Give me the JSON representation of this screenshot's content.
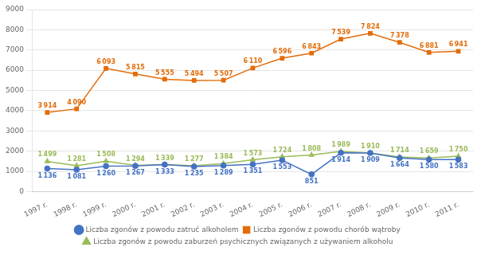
{
  "chart_data": {
    "type": "line",
    "categories": [
      "1997 r.",
      "1998 r.",
      "1999 r.",
      "2000 r.",
      "2001 r.",
      "2002 r.",
      "2003 r.",
      "2004 r.",
      "2005 r.",
      "2006 r.",
      "2007 r.",
      "2008 r.",
      "2009 r.",
      "2010 r.",
      "2011 r."
    ],
    "series": [
      {
        "name": "Liczba zgonów z powodu zatruć alkoholem",
        "color": "#4472C4",
        "marker": "circle",
        "values": [
          1136,
          1081,
          1260,
          1267,
          1333,
          1235,
          1289,
          1351,
          1553,
          851,
          1914,
          1909,
          1664,
          1580,
          1583
        ],
        "value_labels": [
          "1 136",
          "1 081",
          "1 260",
          "1 267",
          "1 333",
          "1 235",
          "1 289",
          "1 351",
          "1 553",
          "851",
          "1 914",
          "1 909",
          "1 664",
          "1 580",
          "1 583"
        ]
      },
      {
        "name": "Liczba zgonów z powodu chorób wątroby",
        "color": "#E36C09",
        "marker": "square",
        "values": [
          3914,
          4090,
          6093,
          5815,
          5555,
          5494,
          5507,
          6110,
          6596,
          6843,
          7539,
          7824,
          7378,
          6881,
          6941
        ],
        "value_labels": [
          "3 914",
          "4 090",
          "6 093",
          "5 815",
          "5 555",
          "5 494",
          "5 507",
          "6 110",
          "6 596",
          "6 843",
          "7 539",
          "7 824",
          "7 378",
          "6 881",
          "6 941"
        ]
      },
      {
        "name": "Liczba zgonów z powodu zaburzeń psychicznych związanych z używaniem alkoholu",
        "color": "#9BBB59",
        "marker": "triangle",
        "values": [
          1499,
          1281,
          1508,
          1294,
          1339,
          1277,
          1384,
          1573,
          1724,
          1808,
          1989,
          1910,
          1714,
          1659,
          1750
        ],
        "value_labels": [
          "1 499",
          "1 281",
          "1 508",
          "1 294",
          "1 339",
          "1 277",
          "1 384",
          "1 573",
          "1 724",
          "1 808",
          "1 989",
          "1 910",
          "1 714",
          "1 659",
          "1 750"
        ]
      }
    ],
    "ylim": [
      0,
      9000
    ],
    "yticks": [
      0,
      1000,
      2000,
      3000,
      4000,
      5000,
      6000,
      7000,
      8000,
      9000
    ],
    "grid": true,
    "legend": "bottom",
    "data_labels": true
  }
}
